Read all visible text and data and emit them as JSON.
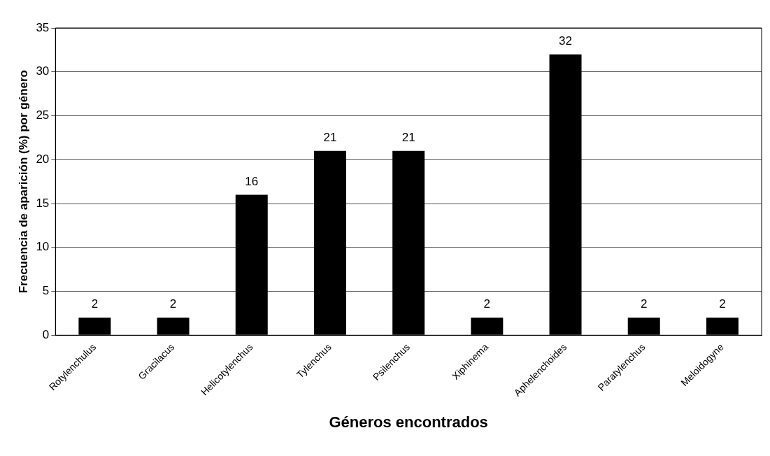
{
  "chart_data": {
    "type": "bar",
    "xlabel": "Géneros encontrados",
    "ylabel": "Frecuencia de aparición (%) por género",
    "categories": [
      "Rotylenchulus",
      "Gracilacus",
      "Helicotylenchus",
      "Tylenchus",
      "Psilenchus",
      "Xiphinema",
      "Aphelenchoides",
      "Paratylenchus",
      "Meloidogyne"
    ],
    "values": [
      2,
      2,
      16,
      21,
      21,
      2,
      32,
      2,
      2
    ],
    "color": "#000000",
    "ylim": [
      0,
      35
    ],
    "yticks": [
      0,
      5,
      10,
      15,
      20,
      25,
      30,
      35
    ],
    "grid": "y",
    "data_labels": true,
    "legend": false
  }
}
